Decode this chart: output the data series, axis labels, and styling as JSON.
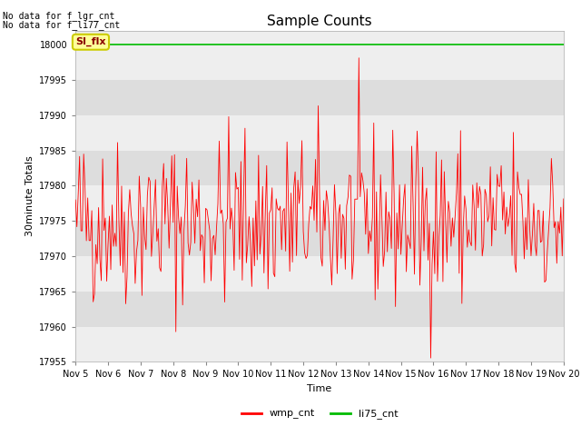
{
  "title": "Sample Counts",
  "xlabel": "Time",
  "ylabel": "30minute Totals",
  "ylim": [
    17955,
    18002
  ],
  "xlim": [
    0,
    360
  ],
  "x_tick_labels": [
    "Nov 5",
    "Nov 6",
    "Nov 7",
    "Nov 8",
    "Nov 9",
    "Nov 10",
    "Nov 11",
    "Nov 12",
    "Nov 13",
    "Nov 14",
    "Nov 15",
    "Nov 16",
    "Nov 17",
    "Nov 18",
    "Nov 19",
    "Nov 20"
  ],
  "x_tick_positions": [
    0,
    24,
    48,
    72,
    96,
    120,
    144,
    168,
    192,
    216,
    240,
    264,
    288,
    312,
    336,
    360
  ],
  "wmp_cnt_color": "#ff0000",
  "li75_cnt_color": "#00bb00",
  "li75_value": 18000,
  "no_data_text1": "No data for f_lgr_cnt",
  "no_data_text2": "No data for f_li77_cnt",
  "si_flx_text": "SI_flx",
  "fig_bg_color": "#ffffff",
  "plot_bg_color_light": "#eeeeee",
  "plot_bg_color_dark": "#dddddd",
  "title_fontsize": 11,
  "label_fontsize": 8,
  "tick_fontsize": 7,
  "anno_fontsize": 7,
  "legend_entries": [
    "wmp_cnt",
    "li75_cnt"
  ],
  "legend_colors": [
    "#ff0000",
    "#00bb00"
  ],
  "seed": 42,
  "n_points": 361,
  "base_mean": 17975,
  "noise_std": 6
}
